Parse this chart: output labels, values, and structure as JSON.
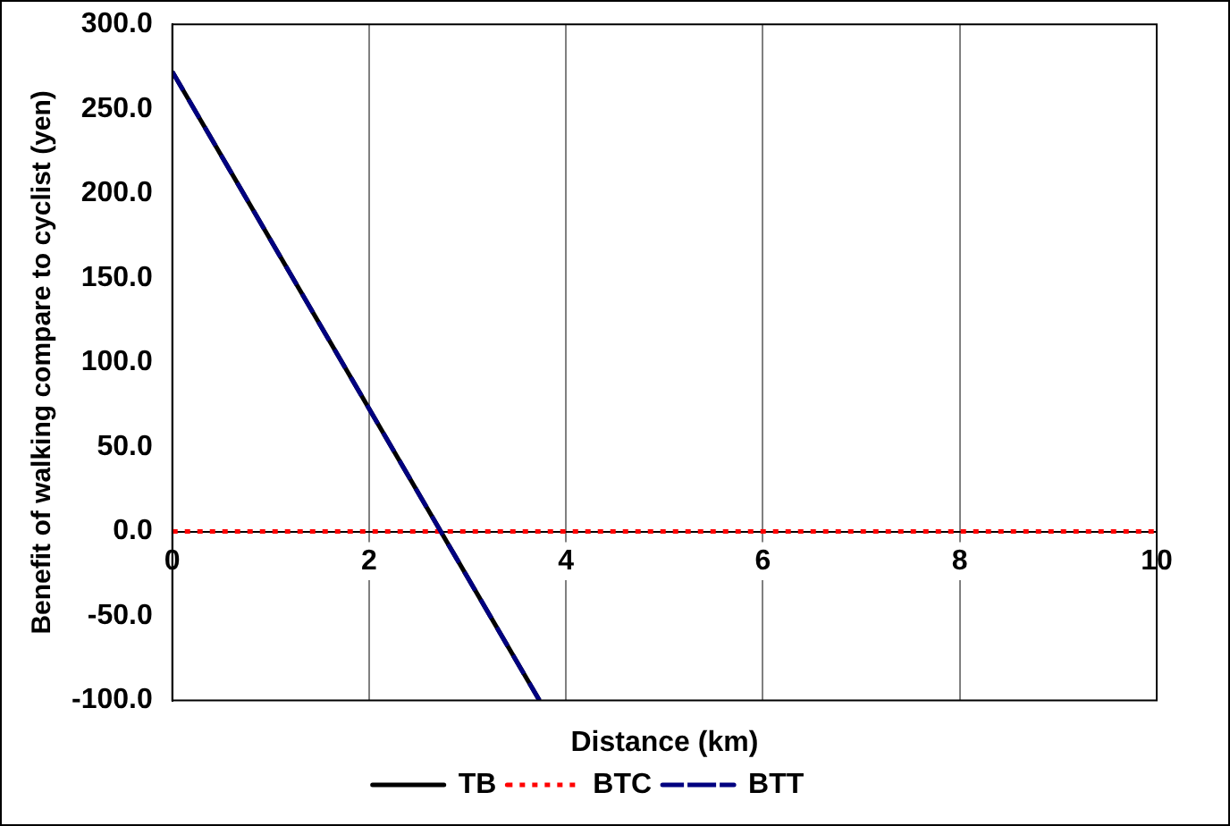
{
  "chart_data": {
    "type": "line",
    "xlabel": "Distance (km)",
    "ylabel": "Benefit of walking compare to cyclist (yen)",
    "xlim": [
      0,
      10
    ],
    "xticks": [
      0,
      2,
      4,
      6,
      8,
      10
    ],
    "ylim": [
      -100,
      300
    ],
    "yticks": [
      {
        "value": -100,
        "label": "-100.0"
      },
      {
        "value": -50,
        "label": "-50.0"
      },
      {
        "value": 0,
        "label": "0.0"
      },
      {
        "value": 50,
        "label": "50.0"
      },
      {
        "value": 100,
        "label": "100.0"
      },
      {
        "value": 150,
        "label": "150.0"
      },
      {
        "value": 200,
        "label": "200.0"
      },
      {
        "value": 250,
        "label": "250.0"
      },
      {
        "value": 300,
        "label": "300.0"
      }
    ],
    "grid": "x",
    "legend": "bottom",
    "marker": "none",
    "series": [
      {
        "name": "TB",
        "color": "#000000",
        "line_style": "solid",
        "x": [
          0,
          3.73
        ],
        "values": [
          272,
          -100
        ]
      },
      {
        "name": "BTC",
        "color": "#ff0000",
        "line_style": "dotted",
        "x": [
          0,
          10
        ],
        "values": [
          0,
          0
        ]
      },
      {
        "name": "BTT",
        "color": "#000080",
        "line_style": "dashed",
        "x": [
          0,
          3.73
        ],
        "values": [
          272,
          -100
        ]
      }
    ]
  }
}
